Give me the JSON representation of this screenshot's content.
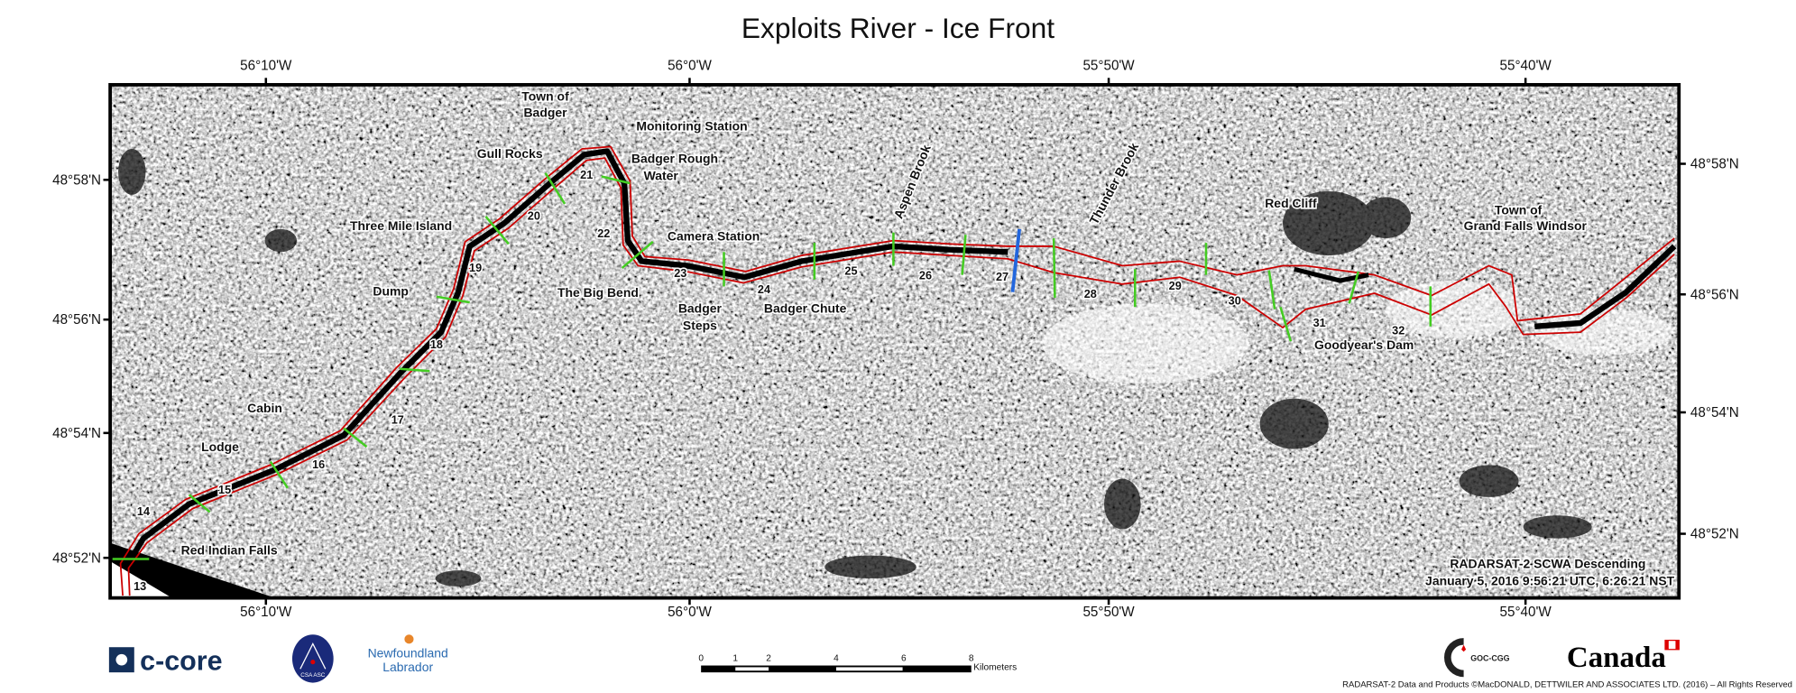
{
  "title": "Exploits River - Ice Front",
  "longitude_labels": [
    "56°10'W",
    "56°0'W",
    "55°50'W",
    "55°40'W"
  ],
  "latitude_labels_left": [
    "48°58'N",
    "48°56'N",
    "48°54'N",
    "48°52'N"
  ],
  "latitude_labels_right": [
    "48°58'N",
    "48°56'N",
    "48°54'N",
    "48°52'N"
  ],
  "places": {
    "town_badger_1": "Town of",
    "town_badger_2": "Badger",
    "monitoring": "Monitoring Station",
    "gull": "Gull Rocks",
    "rough_1": "Badger Rough",
    "rough_2": "Water",
    "three_mile": "Three Mile Island",
    "camera": "Camera Station",
    "big_bend": "The Big Bend",
    "steps_1": "Badger",
    "steps_2": "Steps",
    "chute": "Badger Chute",
    "dump": "Dump",
    "cabin": "Cabin",
    "lodge": "Lodge",
    "falls": "Red Indian Falls",
    "aspen": "Aspen Brook",
    "thunder": "Thunder Brook",
    "red_cliff": "Red Cliff",
    "gfw_1": "Town of",
    "gfw_2": "Grand Falls Windsor",
    "goodyear": "Goodyear's Dam"
  },
  "sections": [
    "13",
    "14",
    "15",
    "16",
    "17",
    "18",
    "19",
    "20",
    "21",
    "22",
    "23",
    "24",
    "25",
    "26",
    "27",
    "28",
    "29",
    "30",
    "31",
    "32"
  ],
  "acquisition": {
    "line1": "RADARSAT-2 SCWA Descending",
    "line2": "January 5, 2016 9:56:21 UTC, 6:26:21 NST"
  },
  "scale_bar": {
    "ticks": [
      "0",
      "1",
      "2",
      "4",
      "6",
      "8"
    ],
    "unit": "Kilometers"
  },
  "logos": {
    "ccore": "c-core",
    "csa": "CSA ASC",
    "nl_1": "Newfoundland",
    "nl_2": "Labrador",
    "goc": "GOC-CGG",
    "canada": "Canada"
  },
  "copyright": "RADARSAT-2 Data and Products ©MacDONALD, DETTWILER AND ASSOCIATES LTD. (2016) – All Rights Reserved",
  "colors": {
    "ice_front": "#cc0000",
    "section_line": "#44cc22",
    "current_front": "#2266dd"
  }
}
